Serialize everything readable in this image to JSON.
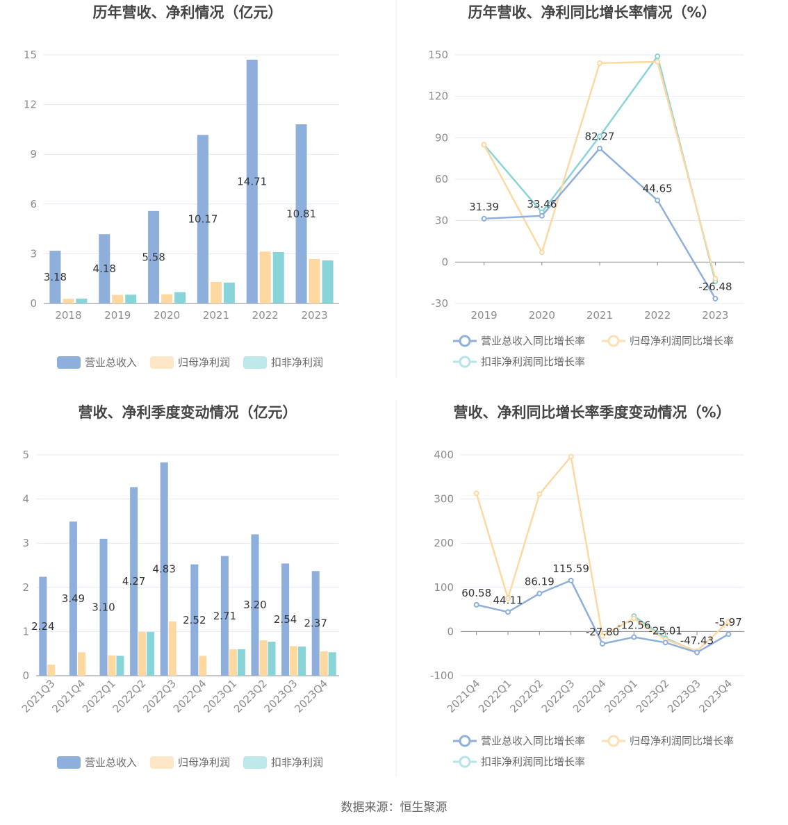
{
  "colors": {
    "revenue": "#8eaedc",
    "netProfit": "#fdd9a1",
    "deducted": "#89d4d8",
    "grid": "#e4e8f2",
    "axis": "#888888"
  },
  "source": "数据来源：恒生聚源",
  "legend_bar": [
    "营业总收入",
    "归母净利润",
    "扣非净利润"
  ],
  "legend_line": [
    "营业总收入同比增长率",
    "归母净利润同比增长率",
    "扣非净利润同比增长率"
  ],
  "chart_data": [
    {
      "type": "bar",
      "title": "历年营收、净利情况（亿元）",
      "categories": [
        "2018",
        "2019",
        "2020",
        "2021",
        "2022",
        "2023"
      ],
      "ylim": [
        0,
        15
      ],
      "yticks": [
        "0",
        "3",
        "6",
        "9",
        "12",
        "15"
      ],
      "series": [
        {
          "name": "营业总收入",
          "values": [
            3.18,
            4.18,
            5.58,
            10.17,
            14.71,
            10.81
          ],
          "labels": [
            "3.18",
            "4.18",
            "5.58",
            "10.17",
            "14.71",
            "10.81"
          ]
        },
        {
          "name": "归母净利润",
          "values": [
            0.28,
            0.52,
            0.55,
            1.3,
            3.13,
            2.68
          ]
        },
        {
          "name": "扣非净利润",
          "values": [
            0.29,
            0.53,
            0.68,
            1.26,
            3.1,
            2.6
          ]
        }
      ]
    },
    {
      "type": "line",
      "title": "历年营收、净利同比增长率情况（%）",
      "categories": [
        "2019",
        "2020",
        "2021",
        "2022",
        "2023"
      ],
      "ylim": [
        -30,
        150
      ],
      "yticks": [
        "-30",
        "0",
        "30",
        "60",
        "90",
        "120",
        "150"
      ],
      "series": [
        {
          "name": "营业总收入同比增长率",
          "values": [
            31.39,
            33.46,
            82.27,
            44.65,
            -26.48
          ],
          "labels": [
            "31.39",
            "33.46",
            "82.27",
            "44.65",
            "-26.48"
          ]
        },
        {
          "name": "归母净利润同比增长率",
          "values": [
            85,
            7,
            144,
            145,
            -12
          ]
        },
        {
          "name": "扣非净利润同比增长率",
          "values": [
            85,
            36,
            91,
            149,
            -14
          ]
        }
      ]
    },
    {
      "type": "bar",
      "title": "营收、净利季度变动情况（亿元）",
      "categories": [
        "2021Q3",
        "2021Q4",
        "2022Q1",
        "2022Q2",
        "2022Q3",
        "2022Q4",
        "2023Q1",
        "2023Q2",
        "2023Q3",
        "2023Q4"
      ],
      "ylim": [
        0,
        5
      ],
      "yticks": [
        "0",
        "1",
        "2",
        "3",
        "4",
        "5"
      ],
      "series": [
        {
          "name": "营业总收入",
          "values": [
            2.24,
            3.49,
            3.1,
            4.27,
            4.83,
            2.52,
            2.71,
            3.2,
            2.54,
            2.37
          ],
          "labels": [
            "2.24",
            "3.49",
            "3.10",
            "4.27",
            "4.83",
            "2.52",
            "2.71",
            "3.20",
            "2.54",
            "2.37"
          ]
        },
        {
          "name": "归母净利润",
          "values": [
            0.25,
            0.53,
            0.46,
            0.99,
            1.23,
            0.45,
            0.6,
            0.8,
            0.67,
            0.55
          ]
        },
        {
          "name": "扣非净利润",
          "values": [
            null,
            null,
            0.45,
            0.99,
            null,
            null,
            0.6,
            0.77,
            0.66,
            0.53
          ]
        }
      ]
    },
    {
      "type": "line",
      "title": "营收、净利同比增长率季度变动情况（%）",
      "categories": [
        "2021Q4",
        "2022Q1",
        "2022Q2",
        "2022Q3",
        "2022Q4",
        "2023Q1",
        "2023Q2",
        "2023Q3",
        "2023Q4"
      ],
      "ylim": [
        -100,
        400
      ],
      "yticks": [
        "-100",
        "0",
        "100",
        "200",
        "300",
        "400"
      ],
      "series": [
        {
          "name": "营业总收入同比增长率",
          "values": [
            60.58,
            44.11,
            86.19,
            115.59,
            -27.8,
            -12.56,
            -25.01,
            -47.43,
            -5.97
          ],
          "labels": [
            "60.58",
            "44.11",
            "86.19",
            "115.59",
            "-27.80",
            "-12.56",
            "-25.01",
            "-47.43",
            "-5.97"
          ]
        },
        {
          "name": "归母净利润同比增长率",
          "values": [
            313,
            75,
            311,
            396,
            -10,
            30,
            -18,
            -44,
            22
          ]
        },
        {
          "name": "扣非净利润同比增长率",
          "values": [
            null,
            null,
            null,
            null,
            null,
            35,
            -15,
            -46,
            null
          ]
        }
      ]
    }
  ]
}
